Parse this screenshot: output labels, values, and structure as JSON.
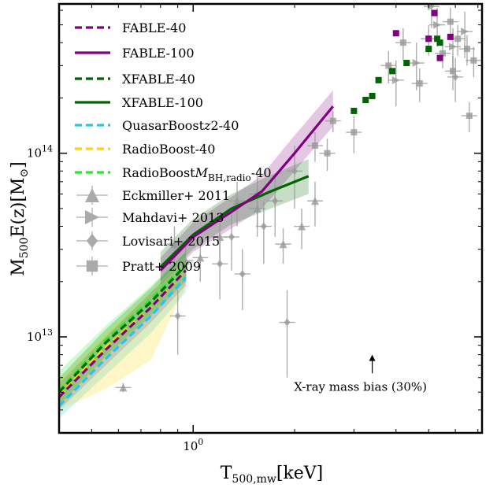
{
  "chart_data": {
    "type": "line",
    "title": "",
    "xlabel": "T_500,mw [keV]",
    "ylabel": "M_500 E(z) [M_sun]",
    "x_scale": "log",
    "y_scale": "log",
    "xlim": [
      0.4,
      7.2
    ],
    "ylim": [
      3000000000000.0,
      650000000000000.0
    ],
    "x_ticks": [
      {
        "value": 1,
        "label": "10^0"
      }
    ],
    "y_ticks": [
      {
        "value": 10000000000000.0,
        "label": "10^13"
      },
      {
        "value": 100000000000000.0,
        "label": "10^14"
      }
    ],
    "grid": false,
    "legend_position": "top-left",
    "annotation": {
      "text": "X-ray mass bias (30%)",
      "x": 3.4,
      "y": 5200000000000.0,
      "arrow_to_y": 8000000000000.0
    },
    "series": [
      {
        "name": "FABLE-40",
        "style": "dashed",
        "color": "#800080",
        "x": [
          0.4,
          0.55,
          0.75,
          0.95
        ],
        "y": [
          4700000000000.0,
          8500000000000.0,
          14500000000000.0,
          23000000000000.0
        ],
        "band_lo": [
          4000000000000.0,
          7000000000000.0,
          12000000000000.0,
          19000000000000.0
        ],
        "band_hi": [
          5600000000000.0,
          10000000000000.0,
          17500000000000.0,
          27000000000000.0
        ]
      },
      {
        "name": "FABLE-100",
        "style": "solid",
        "color": "#800080",
        "x": [
          0.8,
          1.0,
          1.3,
          1.6,
          2.0,
          2.6
        ],
        "y": [
          23000000000000.0,
          35000000000000.0,
          48000000000000.0,
          62000000000000.0,
          100000000000000.0,
          180000000000000.0
        ],
        "band_lo": [
          19000000000000.0,
          29000000000000.0,
          39000000000000.0,
          50000000000000.0,
          80000000000000.0,
          140000000000000.0
        ],
        "band_hi": [
          27000000000000.0,
          42000000000000.0,
          58000000000000.0,
          76000000000000.0,
          125000000000000.0,
          220000000000000.0
        ]
      },
      {
        "name": "XFABLE-40",
        "style": "dashed",
        "color": "#006400",
        "x": [
          0.4,
          0.55,
          0.75,
          0.95
        ],
        "y": [
          5000000000000.0,
          9300000000000.0,
          15500000000000.0,
          24500000000000.0
        ],
        "band_lo": [
          4200000000000.0,
          7800000000000.0,
          13000000000000.0,
          20000000000000.0
        ],
        "band_hi": [
          6000000000000.0,
          11000000000000.0,
          18500000000000.0,
          29000000000000.0
        ]
      },
      {
        "name": "XFABLE-100",
        "style": "solid",
        "color": "#006400",
        "x": [
          0.8,
          1.0,
          1.3,
          1.7,
          2.2
        ],
        "y": [
          24000000000000.0,
          36000000000000.0,
          50000000000000.0,
          62000000000000.0,
          75000000000000.0
        ],
        "band_lo": [
          20000000000000.0,
          30000000000000.0,
          41000000000000.0,
          50000000000000.0,
          60000000000000.0
        ],
        "band_hi": [
          29000000000000.0,
          44000000000000.0,
          60000000000000.0,
          76000000000000.0,
          93000000000000.0
        ]
      },
      {
        "name": "QuasarBoostz2-40",
        "style": "dashed",
        "color": "#1ec8f0",
        "x": [
          0.4,
          0.55,
          0.75,
          0.95
        ],
        "y": [
          4200000000000.0,
          7600000000000.0,
          13000000000000.0,
          21000000000000.0
        ],
        "band_lo": [
          3600000000000.0,
          6200000000000.0,
          10500000000000.0,
          17500000000000.0
        ],
        "band_hi": [
          5000000000000.0,
          9600000000000.0,
          17000000000000.0,
          25000000000000.0
        ]
      },
      {
        "name": "RadioBoost-40",
        "style": "dashed",
        "color": "#ffd700",
        "x": [
          0.4,
          0.55,
          0.75,
          0.95
        ],
        "y": [
          4800000000000.0,
          8800000000000.0,
          14500000000000.0,
          23000000000000.0
        ],
        "band_lo": [
          4000000000000.0,
          5200000000000.0,
          7500000000000.0,
          19000000000000.0
        ],
        "band_hi": [
          5800000000000.0,
          10500000000000.0,
          17500000000000.0,
          27000000000000.0
        ]
      },
      {
        "name": "RadioBoostM_BH,radio-40",
        "style": "dashed",
        "color": "#22ee22",
        "x": [
          0.4,
          0.55,
          0.75,
          0.95
        ],
        "y": [
          5100000000000.0,
          9600000000000.0,
          16000000000000.0,
          25000000000000.0
        ],
        "band_lo": [
          4300000000000.0,
          8000000000000.0,
          13500000000000.0,
          21000000000000.0
        ],
        "band_hi": [
          6500000000000.0,
          11500000000000.0,
          19000000000000.0,
          29000000000000.0
        ]
      }
    ],
    "observations": [
      {
        "name": "Eckmiller+ 2011",
        "marker": "triangle-up",
        "color": "#999999",
        "points": [
          [
            0.62,
            5300000000000.0,
            300000000000.0
          ],
          [
            0.88,
            32000000000000.0,
            8000000000000.0
          ],
          [
            0.95,
            26000000000000.0,
            6000000000000.0
          ],
          [
            1.05,
            27000000000000.0,
            7000000000000.0
          ],
          [
            1.2,
            35000000000000.0,
            9000000000000.0
          ],
          [
            1.35,
            55000000000000.0,
            15000000000000.0
          ],
          [
            1.55,
            50000000000000.0,
            15000000000000.0
          ],
          [
            1.85,
            32000000000000.0,
            7000000000000.0
          ],
          [
            2.1,
            40000000000000.0,
            10000000000000.0
          ],
          [
            2.3,
            55000000000000.0,
            15000000000000.0
          ]
        ]
      },
      {
        "name": "Mahdavi+ 2013",
        "marker": "triangle-right",
        "color": "#999999",
        "points": [
          [
            4.0,
            250000000000000.0,
            70000000000000.0
          ],
          [
            4.6,
            310000000000000.0,
            90000000000000.0
          ],
          [
            5.3,
            500000000000000.0,
            120000000000000.0
          ],
          [
            5.9,
            380000000000000.0,
            100000000000000.0
          ],
          [
            6.4,
            460000000000000.0,
            130000000000000.0
          ],
          [
            5.1,
            630000000000000.0,
            150000000000000.0
          ]
        ]
      },
      {
        "name": "Lovisari+ 2015",
        "marker": "diamond",
        "color": "#999999",
        "points": [
          [
            0.9,
            13000000000000.0,
            5000000000000.0
          ],
          [
            1.2,
            25000000000000.0,
            9000000000000.0
          ],
          [
            1.3,
            35000000000000.0,
            12000000000000.0
          ],
          [
            1.4,
            22000000000000.0,
            8000000000000.0
          ],
          [
            1.55,
            60000000000000.0,
            20000000000000.0
          ],
          [
            1.62,
            40000000000000.0,
            15000000000000.0
          ],
          [
            1.75,
            55000000000000.0,
            20000000000000.0
          ],
          [
            1.9,
            12000000000000.0,
            6000000000000.0
          ],
          [
            2.0,
            80000000000000.0,
            30000000000000.0
          ],
          [
            6.0,
            260000000000000.0,
            70000000000000.0
          ]
        ]
      },
      {
        "name": "Pratt+ 2009",
        "marker": "square",
        "color": "#999999",
        "points": [
          [
            2.3,
            110000000000000.0,
            20000000000000.0
          ],
          [
            2.5,
            100000000000000.0,
            20000000000000.0
          ],
          [
            2.6,
            150000000000000.0,
            20000000000000.0
          ],
          [
            3.0,
            130000000000000.0,
            30000000000000.0
          ],
          [
            3.8,
            300000000000000.0,
            60000000000000.0
          ],
          [
            4.2,
            400000000000000.0,
            80000000000000.0
          ],
          [
            4.7,
            240000000000000.0,
            50000000000000.0
          ],
          [
            5.0,
            420000000000000.0,
            80000000000000.0
          ],
          [
            5.5,
            350000000000000.0,
            60000000000000.0
          ],
          [
            5.8,
            520000000000000.0,
            100000000000000.0
          ],
          [
            6.1,
            420000000000000.0,
            80000000000000.0
          ],
          [
            6.5,
            370000000000000.0,
            70000000000000.0
          ],
          [
            6.8,
            320000000000000.0,
            60000000000000.0
          ],
          [
            5.9,
            280000000000000.0,
            60000000000000.0
          ],
          [
            6.6,
            160000000000000.0,
            30000000000000.0
          ]
        ]
      },
      {
        "name": "FABLE-100 clusters",
        "marker": "square",
        "color": "#800080",
        "legend": false,
        "points": [
          [
            4.0,
            450000000000000.0,
            0
          ],
          [
            5.2,
            580000000000000.0,
            0
          ],
          [
            5.0,
            420000000000000.0,
            0
          ],
          [
            5.8,
            430000000000000.0,
            0
          ],
          [
            5.4,
            330000000000000.0,
            0
          ]
        ]
      },
      {
        "name": "XFABLE-100 clusters",
        "marker": "square",
        "color": "#006400",
        "legend": false,
        "points": [
          [
            3.0,
            170000000000000.0,
            0
          ],
          [
            3.25,
            195000000000000.0,
            0
          ],
          [
            3.4,
            205000000000000.0,
            0
          ],
          [
            3.55,
            250000000000000.0,
            0
          ],
          [
            3.9,
            280000000000000.0,
            0
          ],
          [
            4.3,
            310000000000000.0,
            0
          ],
          [
            5.0,
            370000000000000.0,
            0
          ],
          [
            5.3,
            420000000000000.0,
            0
          ],
          [
            5.4,
            400000000000000.0,
            0
          ]
        ]
      }
    ]
  }
}
